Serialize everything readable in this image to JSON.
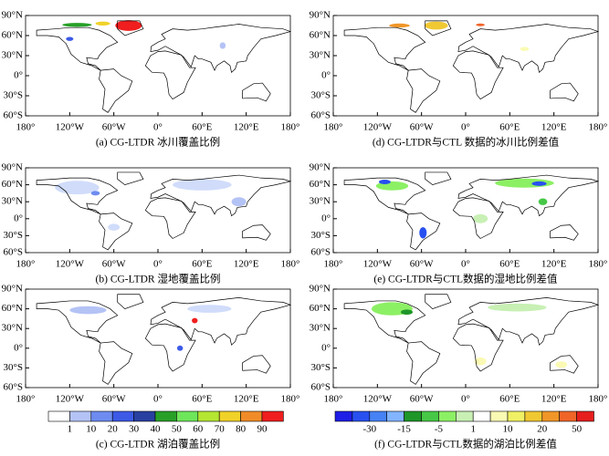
{
  "panels": [
    {
      "caption": "(a) CG-LTDR 冰川覆盖比例"
    },
    {
      "caption": "(d) CG-LTDR与CTL 数据的冰川比例差值"
    },
    {
      "caption": "(b) CG-LTDR 湿地覆盖比例"
    },
    {
      "caption": "(e) CG-LTDR与CTL数据的湿地比例差值"
    },
    {
      "caption": "(c) CG-LTDR 湖泊覆盖比例"
    },
    {
      "caption": "(f) CG-LTDR与CTL数据的湖泊比例差值"
    }
  ],
  "lon_ticks": [
    "180°",
    "120°W",
    "60°W",
    "0°",
    "60°E",
    "120°E",
    "180°"
  ],
  "lat_ticks": [
    "90°N",
    "60°N",
    "30°N",
    "0°",
    "30°S",
    "60°S"
  ],
  "colorbars": [
    {
      "labels": [
        1,
        10,
        20,
        30,
        40,
        50,
        60,
        70,
        80,
        90
      ],
      "colors": [
        "#ffffff",
        "#b4c3f5",
        "#6e8cf0",
        "#3c5ae6",
        "#2840a0",
        "#28a028",
        "#6ee65a",
        "#b4e632",
        "#f0d228",
        "#f08c28",
        "#f01e1e"
      ]
    },
    {
      "labels": [
        -30,
        -15,
        -5,
        1,
        10,
        20,
        50
      ],
      "colors": [
        "#1e1ee6",
        "#2850f0",
        "#4682f5",
        "#82b4ff",
        "#1e9628",
        "#46c846",
        "#8cf064",
        "#c8f0b4",
        "#ffffff",
        "#fafab4",
        "#f0f064",
        "#f0c832",
        "#f09628",
        "#f06428",
        "#e61e1e"
      ]
    }
  ]
}
